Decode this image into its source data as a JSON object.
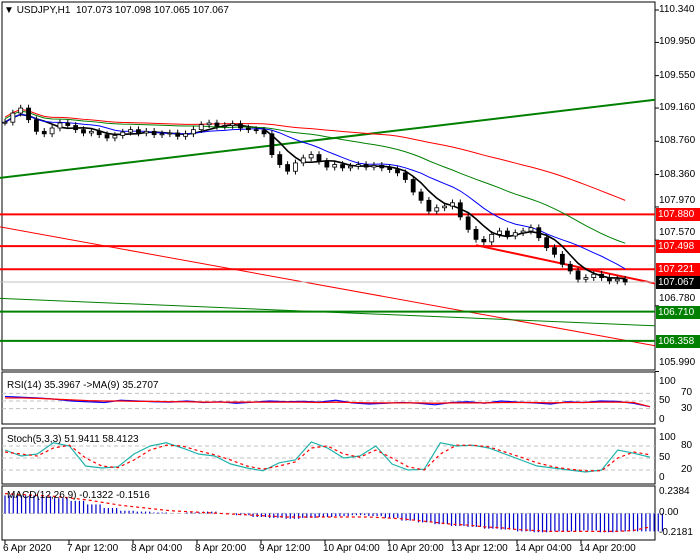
{
  "header": {
    "symbol": "USDJPY,H1",
    "ohlc": "107.073 107.098 107.065 107.067"
  },
  "colors": {
    "up": "#000000",
    "ma_fast": "#000000",
    "ma_mid": "#0000ff",
    "ma_slow": "#008000",
    "ma_long": "#ff0000",
    "support": "#008000",
    "resistance": "#ff0000"
  },
  "price_axis": [
    "110.340",
    "109.950",
    "109.550",
    "109.160",
    "108.760",
    "108.360",
    "107.970",
    "107.570",
    "106.780",
    "105.990"
  ],
  "levels": [
    {
      "label": "107.880",
      "price": 107.88,
      "color": "#ff0000"
    },
    {
      "label": "107.498",
      "price": 107.498,
      "color": "#ff0000"
    },
    {
      "label": "107.221",
      "price": 107.221,
      "color": "#ff0000"
    },
    {
      "label": "107.067",
      "price": 107.067,
      "color": "#000000"
    },
    {
      "label": "106.710",
      "price": 106.71,
      "color": "#008000"
    },
    {
      "label": "106.358",
      "price": 106.358,
      "color": "#008000"
    }
  ],
  "indicators": {
    "rsi": {
      "label": "RSI(14) 35.3967  ->MA(9) 35.2707",
      "axis": [
        "100",
        "70",
        "50",
        "30",
        "0"
      ]
    },
    "stoch": {
      "label": "Stoch(5,3,3) 51.9411 58.4123",
      "axis": [
        "100",
        "80",
        "50",
        "20",
        "0"
      ]
    },
    "macd": {
      "label": "MACD(12,26,9) -0.1322 -0.1516",
      "axis": [
        "0.2384",
        "0.00",
        "-0.2181"
      ]
    }
  },
  "time_axis": [
    "6 Apr 2020",
    "7 Apr 12:00",
    "8 Apr 04:00",
    "8 Apr 20:00",
    "9 Apr 12:00",
    "10 Apr 04:00",
    "10 Apr 20:00",
    "13 Apr 12:00",
    "14 Apr 04:00",
    "14 Apr 20:00"
  ],
  "chart_data": {
    "type": "candlestick",
    "symbol": "USDJPY",
    "timeframe": "H1",
    "ylim": [
      105.99,
      110.34
    ],
    "closes": [
      108.99,
      109.1,
      109.16,
      109.02,
      108.88,
      108.85,
      108.92,
      108.98,
      108.95,
      108.9,
      108.86,
      108.88,
      108.84,
      108.8,
      108.83,
      108.87,
      108.9,
      108.86,
      108.88,
      108.84,
      108.85,
      108.86,
      108.82,
      108.85,
      108.9,
      108.96,
      108.98,
      108.94,
      108.95,
      108.97,
      108.92,
      108.9,
      108.89,
      108.85,
      108.6,
      108.48,
      108.4,
      108.5,
      108.56,
      108.6,
      108.52,
      108.45,
      108.48,
      108.44,
      108.46,
      108.48,
      108.45,
      108.47,
      108.44,
      108.42,
      108.38,
      108.3,
      108.15,
      108.05,
      107.92,
      107.96,
      107.98,
      108.02,
      107.85,
      107.7,
      107.58,
      107.55,
      107.64,
      107.68,
      107.62,
      107.66,
      107.68,
      107.72,
      107.6,
      107.48,
      107.4,
      107.28,
      107.2,
      107.1,
      107.12,
      107.16,
      107.12,
      107.08,
      107.1,
      107.067
    ],
    "ma_periods": [
      5,
      12,
      25,
      50
    ],
    "trendlines": [
      {
        "from": 108.32,
        "to": 109.26,
        "color": "#008000"
      },
      {
        "from": 107.73,
        "to": 106.3,
        "color": "#ff0000"
      },
      {
        "from": 106.87,
        "to": 106.54,
        "color": "#008000"
      },
      {
        "from_index": 60,
        "from": 107.51,
        "to": 107.05,
        "color": "#ff0000"
      }
    ],
    "rsi": [
      62,
      60,
      58,
      55,
      50,
      48,
      46,
      52,
      50,
      48,
      47,
      50,
      46,
      48,
      44,
      47,
      50,
      48,
      49,
      47,
      52,
      45,
      42,
      44,
      46,
      44,
      40,
      46,
      48,
      44,
      50,
      47,
      45,
      42,
      48,
      46,
      50,
      49,
      44,
      35
    ],
    "rsi_ma": [
      58,
      58,
      57,
      55,
      53,
      51,
      50,
      50,
      49,
      49,
      48,
      48,
      47,
      47,
      47,
      47,
      47,
      47,
      47,
      46,
      47,
      46,
      45,
      45,
      45,
      45,
      44,
      45,
      45,
      45,
      46,
      46,
      46,
      45,
      46,
      46,
      47,
      47,
      46,
      35
    ],
    "stoch": [
      70,
      55,
      60,
      88,
      80,
      30,
      25,
      28,
      60,
      80,
      88,
      75,
      60,
      55,
      35,
      25,
      18,
      38,
      45,
      90,
      75,
      50,
      55,
      80,
      35,
      20,
      22,
      88,
      80,
      82,
      75,
      60,
      45,
      30,
      25,
      20,
      15,
      20,
      70,
      62,
      52
    ],
    "stoch_signal": [
      65,
      60,
      55,
      75,
      82,
      50,
      30,
      26,
      45,
      70,
      82,
      80,
      68,
      58,
      45,
      30,
      22,
      30,
      40,
      75,
      80,
      60,
      52,
      70,
      50,
      28,
      20,
      60,
      82,
      82,
      78,
      65,
      52,
      38,
      28,
      22,
      18,
      18,
      50,
      65,
      58
    ],
    "macd_hist": [
      0.2,
      0.2,
      0.19,
      0.17,
      0.14,
      0.1,
      0.06,
      0.03,
      0.02,
      0.01,
      0.0,
      0.01,
      0.02,
      0.0,
      -0.02,
      -0.04,
      -0.05,
      -0.06,
      -0.05,
      -0.04,
      -0.03,
      -0.02,
      -0.03,
      -0.05,
      -0.08,
      -0.1,
      -0.12,
      -0.14,
      -0.15,
      -0.17,
      -0.18,
      -0.2,
      -0.21,
      -0.2,
      -0.2,
      -0.19,
      -0.21,
      -0.2,
      -0.2,
      -0.2
    ],
    "macd_signal": [
      0.22,
      0.21,
      0.2,
      0.19,
      0.17,
      0.15,
      0.12,
      0.09,
      0.07,
      0.05,
      0.03,
      0.02,
      0.01,
      0.0,
      -0.01,
      -0.02,
      -0.03,
      -0.04,
      -0.04,
      -0.04,
      -0.04,
      -0.04,
      -0.04,
      -0.05,
      -0.06,
      -0.08,
      -0.1,
      -0.12,
      -0.13,
      -0.15,
      -0.16,
      -0.18,
      -0.19,
      -0.2,
      -0.2,
      -0.2,
      -0.2,
      -0.2,
      -0.19,
      -0.15
    ]
  }
}
